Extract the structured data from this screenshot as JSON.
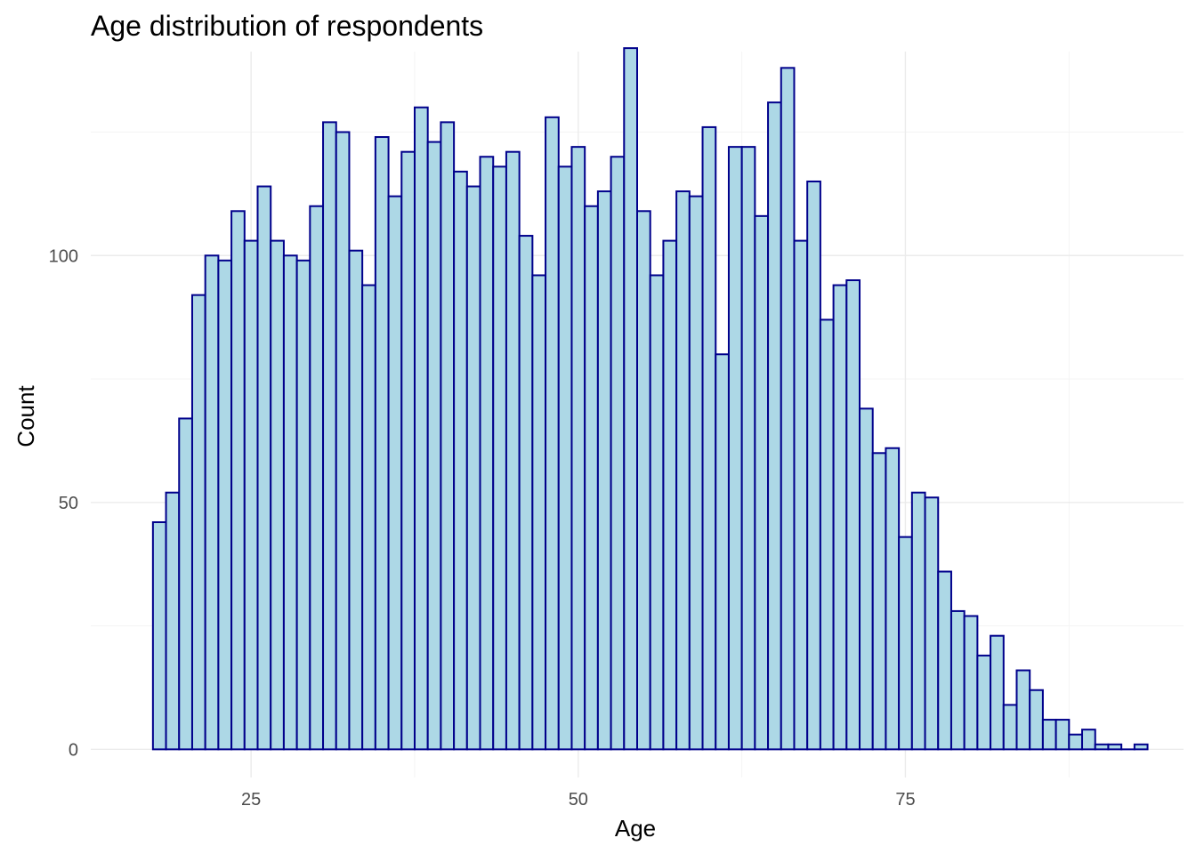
{
  "chart_data": {
    "type": "bar",
    "title": "Age distribution of respondents",
    "xlabel": "Age",
    "ylabel": "Count",
    "bin_width": 1,
    "x_start": 18,
    "xlim": [
      12.75,
      96.25
    ],
    "ylim": [
      -5.7,
      141.3
    ],
    "x_ticks": [
      25,
      50,
      75
    ],
    "y_ticks": [
      0,
      50,
      100
    ],
    "grid": true,
    "legend": "none",
    "fill_color": "#ADD8E6",
    "edge_color": "#00008B",
    "values": [
      46,
      52,
      67,
      92,
      100,
      99,
      109,
      103,
      114,
      103,
      100,
      99,
      110,
      127,
      125,
      101,
      94,
      124,
      112,
      121,
      130,
      123,
      127,
      117,
      114,
      120,
      118,
      121,
      104,
      96,
      128,
      118,
      122,
      110,
      113,
      120,
      142,
      109,
      96,
      103,
      113,
      112,
      126,
      80,
      122,
      122,
      108,
      131,
      138,
      103,
      115,
      87,
      94,
      95,
      69,
      60,
      61,
      43,
      52,
      51,
      36,
      28,
      27,
      19,
      23,
      9,
      16,
      12,
      6,
      6,
      3,
      4,
      1,
      1,
      0,
      1
    ]
  }
}
